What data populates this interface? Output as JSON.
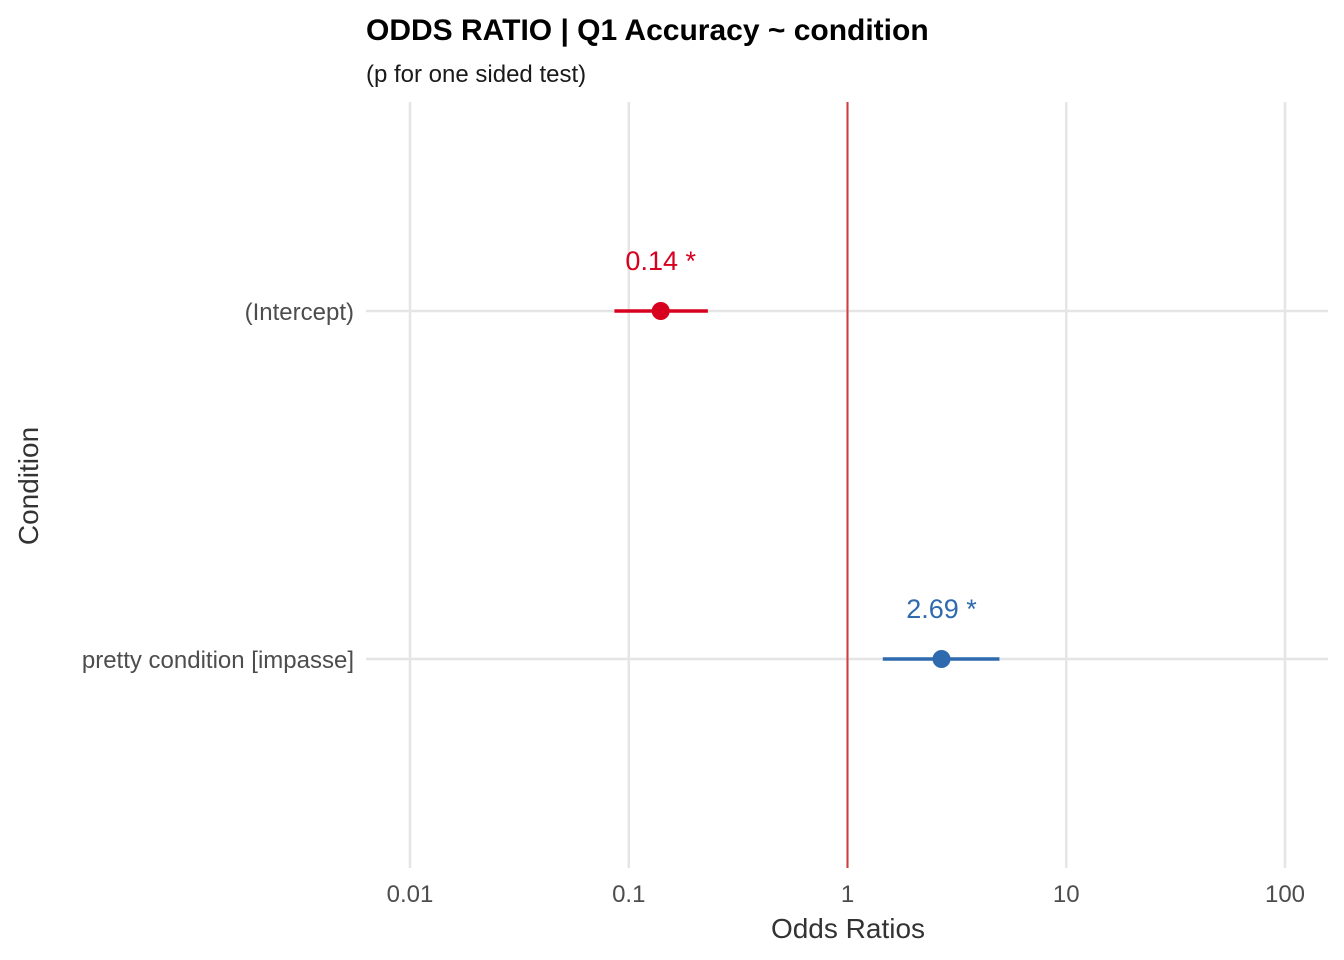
{
  "chart_data": {
    "type": "scatter",
    "title": "ODDS RATIO | Q1 Accuracy ~ condition",
    "subtitle": "(p for one sided test)",
    "xlabel": "Odds Ratios",
    "ylabel": "Condition",
    "x_scale": "log10",
    "xlim": [
      0.01,
      100
    ],
    "x_ticks": [
      "0.01",
      "0.1",
      "1",
      "10",
      "100"
    ],
    "reference_line": 1,
    "grid": true,
    "legend": "none",
    "categories": [
      "(Intercept)",
      "pretty condition [impasse]"
    ],
    "points": [
      {
        "category": "(Intercept)",
        "estimate": 0.14,
        "ci_low": 0.086,
        "ci_high": 0.23,
        "label": "0.14 *",
        "color": "#d7001e"
      },
      {
        "category": "pretty condition [impasse]",
        "estimate": 2.69,
        "ci_low": 1.45,
        "ci_high": 4.95,
        "label": "2.69 *",
        "color": "#2e6aad"
      }
    ],
    "reference_line_color": "#d23c3c"
  }
}
